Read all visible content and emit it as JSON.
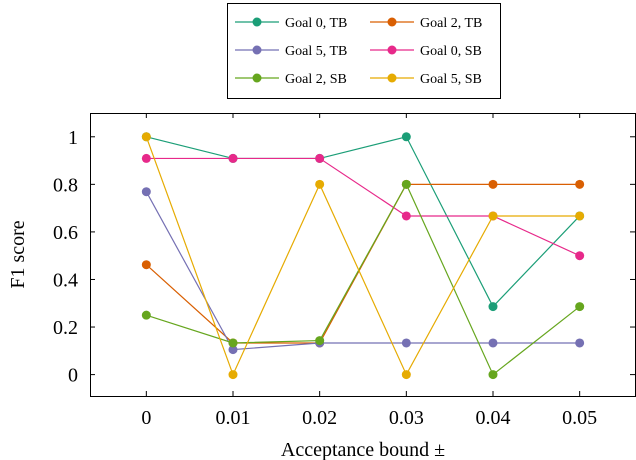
{
  "chart_data": {
    "type": "line",
    "title": "",
    "xlabel": "Acceptance bound ±",
    "ylabel": "F1 score",
    "x": [
      0,
      0.01,
      0.02,
      0.03,
      0.04,
      0.05
    ],
    "x_ticks": [
      "0",
      "0.01",
      "0.02",
      "0.03",
      "0.04",
      "0.05"
    ],
    "y_ticks": [
      "0",
      "0.2",
      "0.4",
      "0.6",
      "0.8",
      "1"
    ],
    "xlim": [
      -0.0065,
      0.0565
    ],
    "ylim": [
      -0.09,
      1.1
    ],
    "grid": false,
    "legend_position": "top-center",
    "series": [
      {
        "name": "Goal 0, TB",
        "color": "#1b9e77",
        "values": [
          1.0,
          0.909,
          0.909,
          1.0,
          0.286,
          0.667
        ]
      },
      {
        "name": "Goal 2, TB",
        "color": "#d95f02",
        "values": [
          0.462,
          0.133,
          0.133,
          0.8,
          0.8,
          0.8
        ]
      },
      {
        "name": "Goal 5, TB",
        "color": "#7570b3",
        "values": [
          0.769,
          0.105,
          0.133,
          0.133,
          0.133,
          0.133
        ]
      },
      {
        "name": "Goal 0, SB",
        "color": "#e7298a",
        "values": [
          0.909,
          0.909,
          0.909,
          0.667,
          0.667,
          0.5
        ]
      },
      {
        "name": "Goal 2, SB",
        "color": "#66a61e",
        "values": [
          0.25,
          0.133,
          0.143,
          0.8,
          0.0,
          0.286
        ]
      },
      {
        "name": "Goal 5, SB",
        "color": "#e6ab02",
        "values": [
          1.0,
          0.0,
          0.8,
          0.0,
          0.667,
          0.667
        ]
      }
    ]
  }
}
